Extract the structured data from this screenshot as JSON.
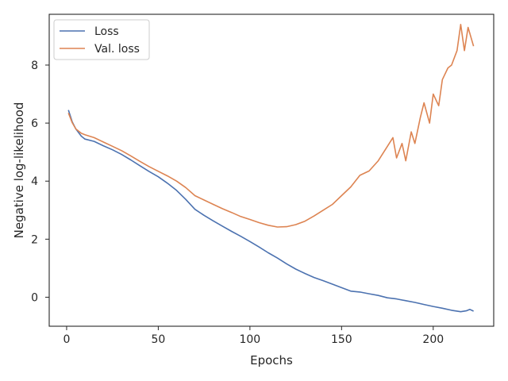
{
  "chart_data": {
    "type": "line",
    "xlabel": "Epochs",
    "ylabel": "Negative log-likelihood",
    "xlim": [
      -9.5,
      233
    ],
    "ylim": [
      -1.0,
      9.75
    ],
    "x_ticks": [
      0,
      50,
      100,
      150,
      200
    ],
    "y_ticks": [
      0,
      2,
      4,
      6,
      8
    ],
    "grid": false,
    "legend_position": "upper-left",
    "series": [
      {
        "name": "Loss",
        "color": "#4c72b0",
        "x": [
          1,
          3,
          5,
          8,
          10,
          15,
          20,
          25,
          30,
          35,
          40,
          45,
          50,
          55,
          60,
          65,
          70,
          75,
          80,
          85,
          90,
          95,
          100,
          105,
          110,
          115,
          120,
          125,
          130,
          135,
          140,
          145,
          150,
          155,
          160,
          165,
          170,
          175,
          180,
          185,
          190,
          195,
          200,
          205,
          210,
          215,
          218,
          220,
          222
        ],
        "y": [
          6.45,
          6.05,
          5.8,
          5.55,
          5.45,
          5.37,
          5.22,
          5.08,
          4.92,
          4.73,
          4.53,
          4.33,
          4.15,
          3.93,
          3.68,
          3.37,
          3.03,
          2.82,
          2.63,
          2.45,
          2.27,
          2.1,
          1.92,
          1.73,
          1.53,
          1.35,
          1.15,
          0.97,
          0.82,
          0.68,
          0.57,
          0.45,
          0.33,
          0.21,
          0.18,
          0.12,
          0.06,
          -0.02,
          -0.06,
          -0.12,
          -0.18,
          -0.25,
          -0.32,
          -0.38,
          -0.45,
          -0.5,
          -0.47,
          -0.42,
          -0.48
        ]
      },
      {
        "name": "Val. loss",
        "color": "#dd8452",
        "x": [
          1,
          3,
          5,
          8,
          10,
          15,
          20,
          25,
          30,
          35,
          40,
          45,
          50,
          55,
          60,
          65,
          70,
          75,
          80,
          85,
          90,
          95,
          100,
          105,
          110,
          115,
          120,
          125,
          130,
          135,
          140,
          145,
          150,
          155,
          160,
          165,
          170,
          175,
          178,
          180,
          183,
          185,
          188,
          190,
          193,
          195,
          198,
          200,
          203,
          205,
          208,
          210,
          213,
          215,
          217,
          219,
          222
        ],
        "y": [
          6.35,
          6.02,
          5.8,
          5.65,
          5.6,
          5.5,
          5.35,
          5.2,
          5.05,
          4.87,
          4.68,
          4.5,
          4.34,
          4.18,
          4.0,
          3.78,
          3.5,
          3.35,
          3.2,
          3.05,
          2.92,
          2.78,
          2.68,
          2.57,
          2.48,
          2.42,
          2.43,
          2.5,
          2.62,
          2.8,
          3.0,
          3.2,
          3.5,
          3.8,
          4.2,
          4.35,
          4.7,
          5.2,
          5.5,
          4.8,
          5.3,
          4.7,
          5.7,
          5.3,
          6.2,
          6.7,
          6.0,
          7.0,
          6.6,
          7.5,
          7.9,
          8.0,
          8.5,
          9.4,
          8.5,
          9.3,
          8.65
        ]
      }
    ]
  }
}
